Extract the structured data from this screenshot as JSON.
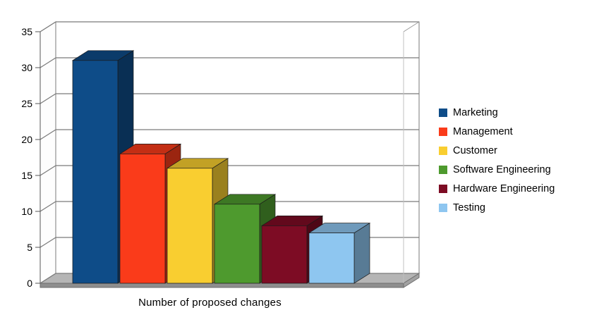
{
  "chart_data": {
    "type": "bar",
    "projection": "3d",
    "title": "",
    "xlabel": "Number of proposed changes",
    "ylabel": "",
    "ylim": [
      0,
      35
    ],
    "yticks": [
      0,
      5,
      10,
      15,
      20,
      25,
      30,
      35
    ],
    "grid": true,
    "legend_position": "right",
    "categories": [
      "Marketing",
      "Management",
      "Customer",
      "Software Engineering",
      "Hardware Engineering",
      "Testing"
    ],
    "values": [
      31,
      18,
      16,
      11,
      8,
      7
    ],
    "colors": [
      "#0E4C88",
      "#FA3B1A",
      "#F9CE30",
      "#4E9A2E",
      "#7D0C24",
      "#8EC6F0"
    ],
    "wall_color": "#FFFFFF",
    "floor_color": "#B5B5B5",
    "gridline_color": "#7A7A7A"
  }
}
